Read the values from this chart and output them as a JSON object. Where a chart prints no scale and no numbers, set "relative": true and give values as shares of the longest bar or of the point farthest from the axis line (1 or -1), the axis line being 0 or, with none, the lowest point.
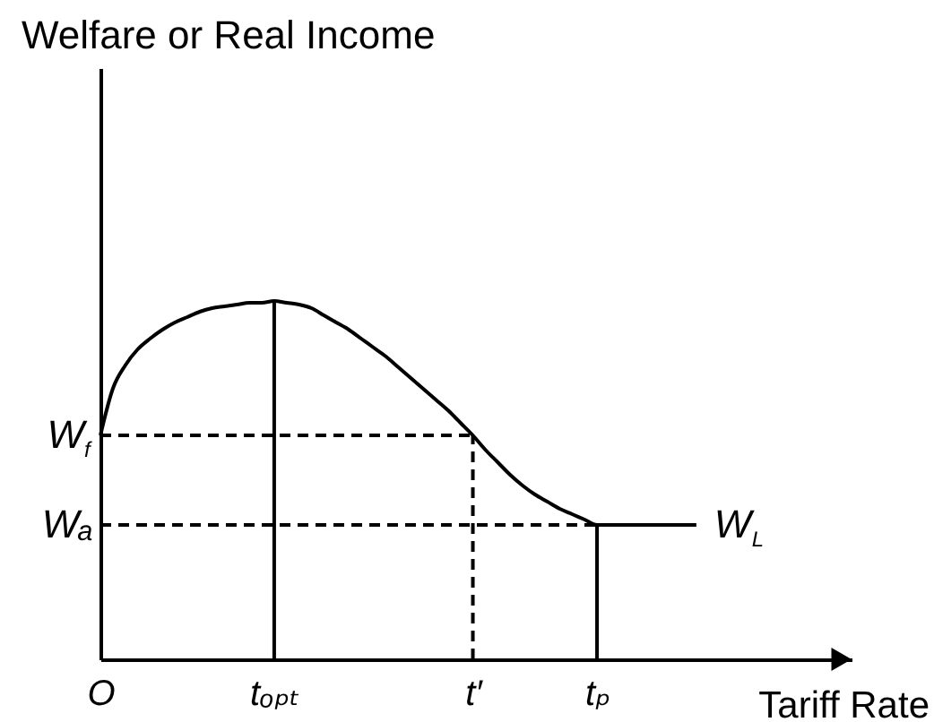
{
  "chart_data": {
    "type": "line",
    "xlabel": "Tariff Rate",
    "relative": true,
    "categories": [
      "O",
      null,
      null,
      null,
      null,
      null,
      null,
      null,
      null,
      null,
      null,
      null,
      null,
      null,
      "tₒₚₜ",
      null,
      null,
      null,
      null,
      null,
      null,
      null,
      null,
      null,
      null,
      null,
      null,
      null,
      null,
      null,
      "t′",
      null,
      null,
      null,
      null,
      null,
      null,
      null,
      null,
      null,
      "tₚ",
      null,
      null,
      null,
      null,
      null,
      null,
      null,
      null
    ],
    "series": [
      {
        "color": "#000000",
        "line_style": "solid",
        "values": [
          0.625,
          0.755,
          0.82,
          0.865,
          0.895,
          0.92,
          0.94,
          0.955,
          0.97,
          0.98,
          0.985,
          0.99,
          0.995,
          0.995,
          1,
          0.995,
          0.99,
          0.98,
          0.96,
          0.94,
          0.92,
          0.895,
          0.87,
          0.845,
          0.815,
          0.785,
          0.755,
          0.725,
          0.695,
          0.66,
          0.625,
          0.585,
          0.55,
          0.515,
          0.485,
          0.46,
          0.44,
          0.42,
          0.405,
          0.39,
          0.375,
          0.375,
          0.375,
          0.375,
          0.375,
          0.375,
          0.375,
          0.375,
          0.375
        ]
      },
      {
        "color": "#000000",
        "line_style": "solid",
        "x": [
          "tₒₚₜ",
          "tₒₚₜ"
        ],
        "values": [
          0,
          1
        ]
      },
      {
        "color": "#000000",
        "line_style": "solid",
        "x": [
          "tₚ",
          "tₚ"
        ],
        "values": [
          0,
          0.375
        ]
      },
      {
        "color": "#000000",
        "line_style": "dashed",
        "x": [
          "O",
          "t′"
        ],
        "values": [
          0.625,
          0.625
        ]
      },
      {
        "color": "#000000",
        "line_style": "dashed",
        "x": [
          "t′",
          "t′"
        ],
        "values": [
          0,
          0.625
        ]
      },
      {
        "color": "#000000",
        "line_style": "dashed",
        "x": [
          "O",
          "tₚ"
        ],
        "values": [
          0.375,
          0.375
        ]
      }
    ],
    "annotations": [
      "Welfare or Real Income",
      {
        "text": "W$_{f}$",
        "x": "O",
        "y": 0.625
      },
      {
        "text": "Wₐ",
        "x": "O",
        "y": 0.375
      },
      "W$_{L}$"
    ]
  }
}
